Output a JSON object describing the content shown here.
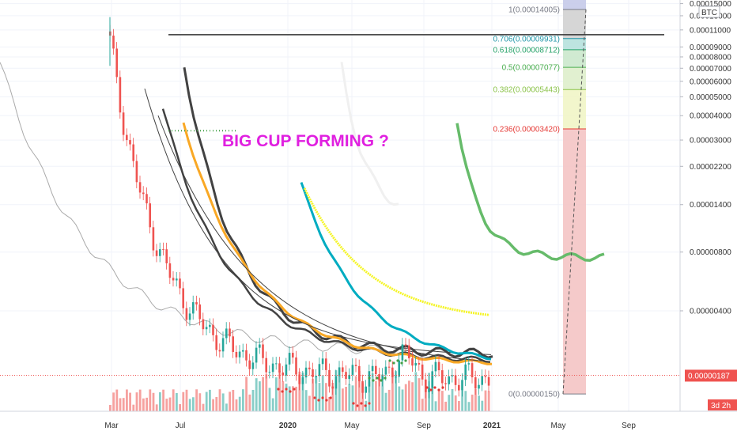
{
  "chart_data": {
    "type": "candlestick",
    "currency_label": "BTC",
    "annotation": "BIG CUP FORMING ?",
    "y_scale": "log",
    "ylim": [
      1.2e-06,
      0.00015
    ],
    "y_ticks": [
      {
        "value": 0.00015,
        "label": "0.00015000"
      },
      {
        "value": 0.00013,
        "label": "0.00013000"
      },
      {
        "value": 0.00011,
        "label": "0.00011000"
      },
      {
        "value": 9e-05,
        "label": "0.00009000"
      },
      {
        "value": 8e-05,
        "label": "0.00008000"
      },
      {
        "value": 7e-05,
        "label": "0.00007000"
      },
      {
        "value": 6e-05,
        "label": "0.00006000"
      },
      {
        "value": 5e-05,
        "label": "0.00005000"
      },
      {
        "value": 4e-05,
        "label": "0.00004000"
      },
      {
        "value": 3e-05,
        "label": "0.00003000"
      },
      {
        "value": 2.2e-05,
        "label": "0.00002200"
      },
      {
        "value": 1.4e-05,
        "label": "0.00001400"
      },
      {
        "value": 8e-06,
        "label": "0.00000800"
      },
      {
        "value": 4e-06,
        "label": "0.00000400"
      }
    ],
    "x_ticks": [
      {
        "label": "Mar",
        "bold": false
      },
      {
        "label": "Jul",
        "bold": false
      },
      {
        "label": "2020",
        "bold": true
      },
      {
        "label": "May",
        "bold": false
      },
      {
        "label": "Sep",
        "bold": false
      },
      {
        "label": "2021",
        "bold": true
      },
      {
        "label": "May",
        "bold": false
      },
      {
        "label": "Sep",
        "bold": false
      }
    ],
    "current_price": {
      "value": 1.87e-06,
      "label": "0.00000187",
      "countdown": "3d 2h"
    },
    "fib_levels": [
      {
        "ratio": "1",
        "value": 0.00014005,
        "label": "1(0.00014005)",
        "color": "#787b86"
      },
      {
        "ratio": "0.706",
        "value": 9.931e-05,
        "label": "0.706(0.00009931)",
        "color": "#2196a8"
      },
      {
        "ratio": "0.618",
        "value": 8.712e-05,
        "label": "0.618(0.00008712)",
        "color": "#26a269"
      },
      {
        "ratio": "0.5",
        "value": 7.077e-05,
        "label": "0.5(0.00007077)",
        "color": "#4caf50"
      },
      {
        "ratio": "0.382",
        "value": 5.443e-05,
        "label": "0.382(0.00005443)",
        "color": "#8bc34a"
      },
      {
        "ratio": "0.236",
        "value": 3.42e-05,
        "label": "0.236(0.00003420)",
        "color": "#e53935"
      },
      {
        "ratio": "0",
        "value": 1.5e-06,
        "label": "0(0.00000150)",
        "color": "#787b86"
      }
    ],
    "horizontal_line": 0.000104,
    "colors": {
      "up": "#26a69a",
      "down": "#ef5350",
      "ma_dark": "#424242",
      "ma_orange": "#f9a825",
      "ma_cyan": "#00acc1",
      "ma_yellow": "#f5f528",
      "ma_green": "#66bb6a",
      "ma_white": "#f0f0f0",
      "line_gray": "#aaaaaa",
      "annotation": "#e020e0",
      "price_badge": "#ef5350"
    }
  }
}
